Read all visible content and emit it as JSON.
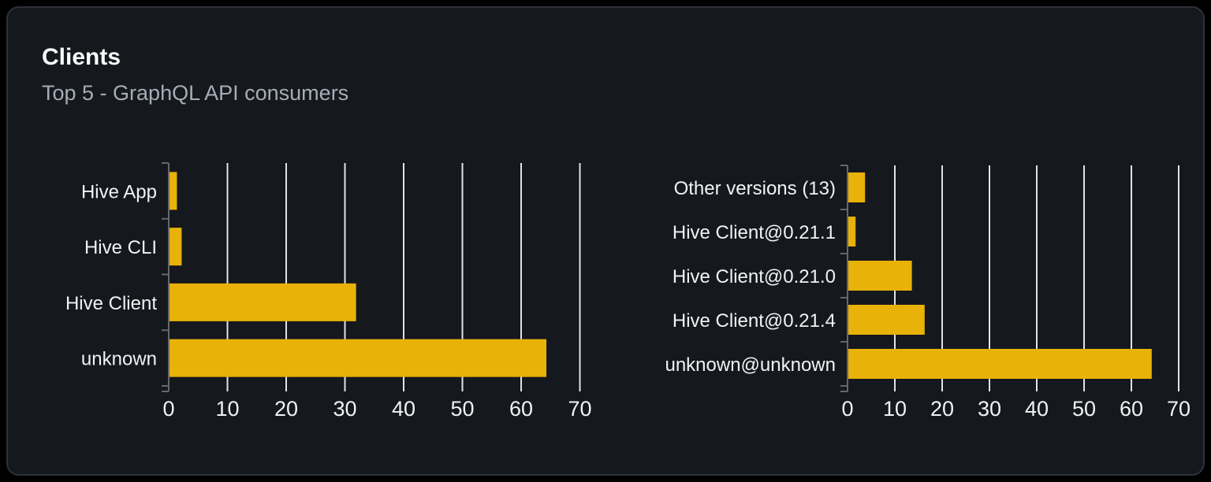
{
  "card": {
    "title": "Clients",
    "subtitle": "Top 5 - GraphQL API consumers"
  },
  "colors": {
    "bar": "#e9b208",
    "gridline": "#dfe3ea",
    "axis": "#66676c",
    "tick_label": "#f1f2f4",
    "category_label": "#f1f2f4",
    "card_background": "#15181d",
    "title": "#f8f9fa",
    "subtitle": "#a7adb6"
  },
  "chart_data": [
    {
      "type": "bar",
      "orientation": "horizontal",
      "title": "",
      "xlabel": "",
      "ylabel": "",
      "categories": [
        "Hive App",
        "Hive CLI",
        "Hive Client",
        "unknown"
      ],
      "values": [
        1.4,
        2.2,
        31.9,
        64.3
      ],
      "x_ticks": [
        0,
        10,
        20,
        30,
        40,
        50,
        60,
        70
      ],
      "xlim": [
        0,
        72
      ],
      "grid": true,
      "legend": false,
      "bar_color": "#e9b208"
    },
    {
      "type": "bar",
      "orientation": "horizontal",
      "title": "",
      "xlabel": "",
      "ylabel": "",
      "categories": [
        "Other versions (13)",
        "Hive Client@0.21.1",
        "Hive Client@0.21.0",
        "Hive Client@0.21.4",
        "unknown@unknown"
      ],
      "values": [
        3.7,
        1.7,
        13.6,
        16.3,
        64.3
      ],
      "x_ticks": [
        0,
        10,
        20,
        30,
        40,
        50,
        60,
        70
      ],
      "xlim": [
        0,
        72
      ],
      "grid": true,
      "legend": false,
      "bar_color": "#e9b208"
    }
  ]
}
